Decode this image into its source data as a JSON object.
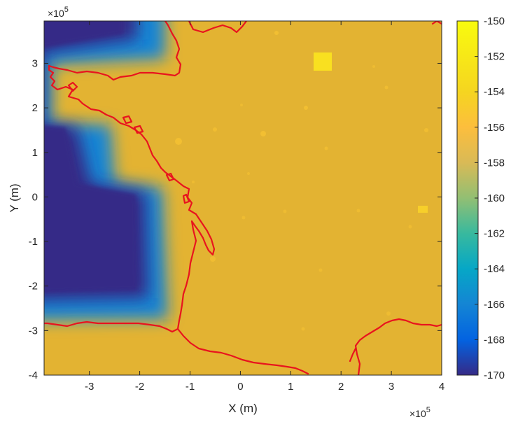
{
  "chart_data": {
    "type": "heatmap",
    "xlabel": "X (m)",
    "ylabel": "Y (m)",
    "x_ticks": [
      "-3",
      "-2",
      "-1",
      "0",
      "1",
      "2",
      "3",
      "4"
    ],
    "x_tick_values": [
      -3,
      -2,
      -1,
      0,
      1,
      2,
      3,
      4
    ],
    "y_ticks": [
      "3",
      "2",
      "1",
      "0",
      "-1",
      "-2",
      "-3",
      "-4"
    ],
    "y_tick_values": [
      3,
      2,
      1,
      0,
      -1,
      -2,
      -3,
      -4
    ],
    "xlim": [
      -3.9,
      4.0
    ],
    "ylim": [
      -4.0,
      3.95
    ],
    "x_exponent": "×10",
    "x_exponent_power": "5",
    "y_exponent": "×10",
    "y_exponent_power": "5",
    "colorbar": {
      "ticks": [
        "-150",
        "-152",
        "-154",
        "-156",
        "-158",
        "-160",
        "-162",
        "-164",
        "-166",
        "-168",
        "-170"
      ],
      "tick_values": [
        -150,
        -152,
        -154,
        -156,
        -158,
        -160,
        -162,
        -164,
        -166,
        -168,
        -170
      ],
      "range": [
        -170,
        -150
      ],
      "colormap": "parula"
    },
    "background_value": -153.4,
    "low_region_value": -170,
    "overlay": "coastline",
    "overlay_color": "#e8141e"
  }
}
